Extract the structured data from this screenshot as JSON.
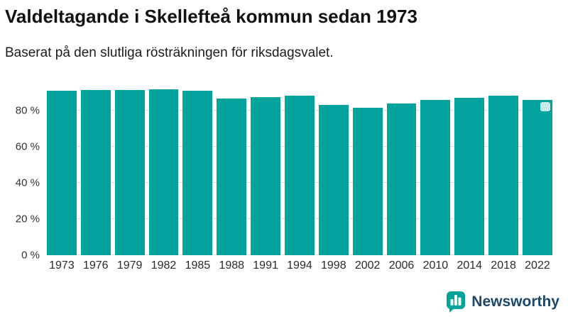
{
  "header": {
    "title": "Valdeltagande i Skellefteå kommun sedan 1973",
    "subtitle": "Baserat på den slutliga rösträkningen för riksdagsvalet."
  },
  "chart_data": {
    "type": "bar",
    "title": "Valdeltagande i Skellefteå kommun sedan 1973",
    "subtitle": "Baserat på den slutliga rösträkningen för riksdagsvalet.",
    "categories": [
      "1973",
      "1976",
      "1979",
      "1982",
      "1985",
      "1988",
      "1991",
      "1994",
      "1998",
      "2002",
      "2006",
      "2010",
      "2014",
      "2018",
      "2022"
    ],
    "values": [
      90.9,
      91.6,
      91.5,
      92.0,
      91.0,
      86.8,
      87.6,
      88.3,
      83.3,
      81.6,
      83.9,
      86.0,
      87.1,
      88.5,
      85.8
    ],
    "xlabel": "",
    "ylabel": "",
    "ylim": [
      0,
      95
    ],
    "ytick_values": [
      0,
      20,
      40,
      60,
      80
    ],
    "ytick_labels": [
      "0 %",
      "20 %",
      "40 %",
      "60 %",
      "80 %"
    ],
    "grid": true,
    "legend_position": "none",
    "bar_color": "#00a49c",
    "grid_color": "#dcdcdc",
    "highlight_last": true,
    "highlight_marker_color": "#c6eae8"
  },
  "footer": {
    "brand": "Newsworthy",
    "brand_text_color": "#1c486b",
    "logo_color": "#00a49c"
  }
}
